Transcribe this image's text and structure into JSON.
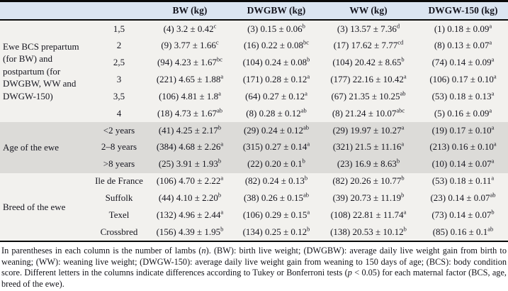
{
  "table": {
    "headers": {
      "bw": "BW (kg)",
      "dwgbw": "DWGBW (kg)",
      "ww": "WW (kg)",
      "dwgw150": "DWGW-150 (kg)"
    },
    "groups": [
      {
        "label": "Ewe BCS prepartum (for BW) and postpartum (for DWGBW, WW and DWGW-150)",
        "rows": [
          {
            "category": "1,5",
            "bw": {
              "pre": "(4) 3.2 ± 0.42",
              "sup": "c"
            },
            "dwgbw": {
              "pre": "(3) 0.15 ± 0.06",
              "sup": "b"
            },
            "ww": {
              "pre": "(3) 13.57 ± 7.36",
              "sup": "d"
            },
            "dwgw": {
              "pre": "(1) 0.18 ± 0.09",
              "sup": "a"
            }
          },
          {
            "category": "2",
            "bw": {
              "pre": "(9) 3.77 ± 1.66",
              "sup": "c"
            },
            "dwgbw": {
              "pre": "(16) 0.22 ± 0.08",
              "sup": "bc"
            },
            "ww": {
              "pre": "(17) 17.62 ± 7.77",
              "sup": "cd"
            },
            "dwgw": {
              "pre": "(8) 0.13 ± 0.07",
              "sup": "a"
            }
          },
          {
            "category": "2,5",
            "bw": {
              "pre": "(94) 4.23 ± 1.67",
              "sup": "bc"
            },
            "dwgbw": {
              "pre": "(104) 0.24 ± 0.08",
              "sup": "b"
            },
            "ww": {
              "pre": "(104) 20.42 ± 8.65",
              "sup": "b"
            },
            "dwgw": {
              "pre": "(74) 0.14 ± 0.09",
              "sup": "a"
            }
          },
          {
            "category": "3",
            "bw": {
              "pre": "(221) 4.65 ± 1.88",
              "sup": "a"
            },
            "dwgbw": {
              "pre": "(171) 0.28 ± 0.12",
              "sup": "a"
            },
            "ww": {
              "pre": "(177) 22.16 ± 10.42",
              "sup": "a"
            },
            "dwgw": {
              "pre": "(106) 0.17 ± 0.10",
              "sup": "a"
            }
          },
          {
            "category": "3,5",
            "bw": {
              "pre": "(106) 4.81 ± 1.8",
              "sup": "a"
            },
            "dwgbw": {
              "pre": "(64) 0.27 ± 0.12",
              "sup": "a"
            },
            "ww": {
              "pre": "(67) 21.35 ± 10.25",
              "sup": "ab"
            },
            "dwgw": {
              "pre": "(53) 0.18 ± 0.13",
              "sup": "a"
            }
          },
          {
            "category": "4",
            "bw": {
              "pre": "(18) 4.73 ± 1.67",
              "sup": "ab"
            },
            "dwgbw": {
              "pre": "(8) 0.28 ± 0.12",
              "sup": "ab"
            },
            "ww": {
              "pre": "(8) 21.24 ± 10.07",
              "sup": "abc"
            },
            "dwgw": {
              "pre": "(5) 0.16 ± 0.09",
              "sup": "a"
            }
          }
        ]
      },
      {
        "label": "Age of the ewe",
        "rows": [
          {
            "category": "<2 years",
            "bw": {
              "pre": "(41) 4.25 ± 2.17",
              "sup": "b"
            },
            "dwgbw": {
              "pre": "(29) 0.24 ± 0.12",
              "sup": "ab"
            },
            "ww": {
              "pre": "(29) 19.97 ± 10.27",
              "sup": "a"
            },
            "dwgw": {
              "pre": "(19) 0.17 ± 0.10",
              "sup": "a"
            }
          },
          {
            "category": "2–8 years",
            "bw": {
              "pre": "(384) 4.68 ± 2.26",
              "sup": "a"
            },
            "dwgbw": {
              "pre": "(315) 0.27 ± 0.14",
              "sup": "a"
            },
            "ww": {
              "pre": "(321) 21.5 ± 11.16",
              "sup": "a"
            },
            "dwgw": {
              "pre": "(213) 0.16 ± 0.10",
              "sup": "a"
            }
          },
          {
            "category": ">8 years",
            "bw": {
              "pre": "(25) 3.91 ± 1.93",
              "sup": "b"
            },
            "dwgbw": {
              "pre": "(22) 0.20 ± 0.1",
              "sup": "b"
            },
            "ww": {
              "pre": "(23) 16.9 ± 8.63",
              "sup": "b"
            },
            "dwgw": {
              "pre": "(10) 0.14 ± 0.07",
              "sup": "a"
            }
          }
        ]
      },
      {
        "label": "Breed of the ewe",
        "rows": [
          {
            "category": "Ile de France",
            "bw": {
              "pre": "(106) 4.70 ± 2.22",
              "sup": "a"
            },
            "dwgbw": {
              "pre": "(82) 0.24 ± 0.13",
              "sup": "b"
            },
            "ww": {
              "pre": "(82) 20.26 ± 10.77",
              "sup": "b"
            },
            "dwgw": {
              "pre": "(53) 0.18 ± 0.11",
              "sup": "a"
            }
          },
          {
            "category": "Suffolk",
            "bw": {
              "pre": "(44) 4.10 ± 2.20",
              "sup": "b"
            },
            "dwgbw": {
              "pre": "(38) 0.26 ± 0.15",
              "sup": "ab"
            },
            "ww": {
              "pre": "(39) 20.73 ± 11.19",
              "sup": "b"
            },
            "dwgw": {
              "pre": "(23) 0.14 ± 0.07",
              "sup": "ab"
            }
          },
          {
            "category": "Texel",
            "bw": {
              "pre": "(132) 4.96 ± 2.44",
              "sup": "a"
            },
            "dwgbw": {
              "pre": "(106) 0.29 ± 0.15",
              "sup": "a"
            },
            "ww": {
              "pre": "(108) 22.81 ± 11.74",
              "sup": "a"
            },
            "dwgw": {
              "pre": "(73) 0.14 ± 0.07",
              "sup": "b"
            }
          },
          {
            "category": "Crossbred",
            "bw": {
              "pre": "(156) 4.39 ± 1.95",
              "sup": "b"
            },
            "dwgbw": {
              "pre": "(134) 0.25 ± 0.12",
              "sup": "b"
            },
            "ww": {
              "pre": "(138) 20.53 ± 10.12",
              "sup": "b"
            },
            "dwgw": {
              "pre": "(85) 0.16 ± 0.1",
              "sup": "ab"
            }
          }
        ]
      }
    ]
  },
  "footnote": {
    "part1": "In parentheses in each column is the number of lambs (",
    "italic_n": "n",
    "part2": "). (BW): birth live weight; (DWGBW): average daily live weight gain from birth to weaning; (WW): weaning live weight; (DWGW-150): average daily live weight gain from weaning to 150 days of age; (BCS): body condition score. Different letters in the columns indicate differences according to Tukey or Bonferroni tests (",
    "italic_p": "p",
    "part3": " < 0.05) for each maternal factor (BCS, age, breed of the ewe)."
  },
  "colors": {
    "header_bg": "#dbe5f1",
    "light_row_bg": "#f2f1ee",
    "dark_row_bg": "#dcdbd8",
    "border": "#0a0a0a"
  }
}
